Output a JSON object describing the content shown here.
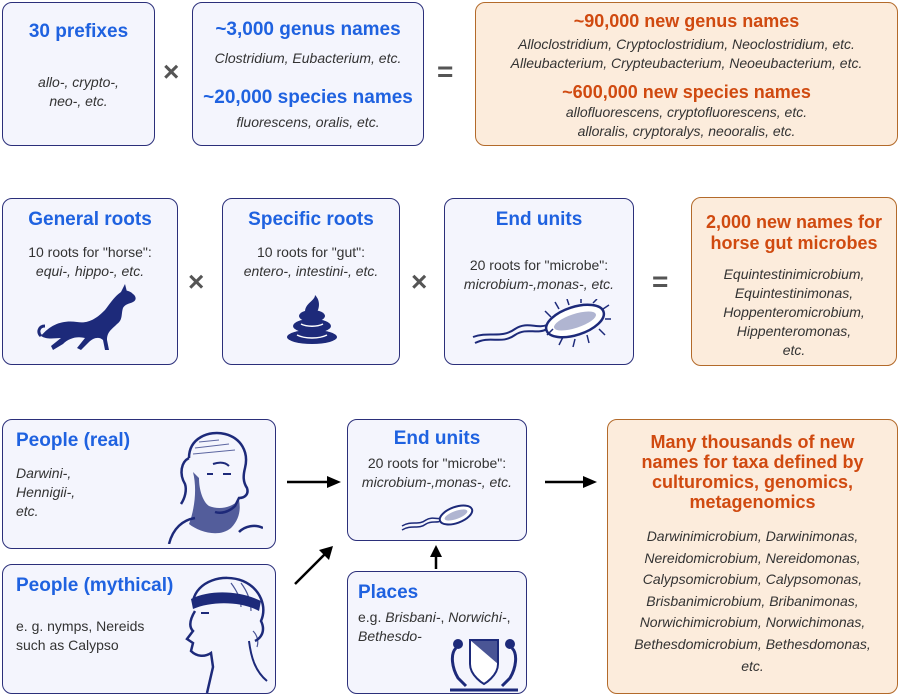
{
  "row1": {
    "prefixes": {
      "title": "30 prefixes",
      "l1": "allo-, crypto-,",
      "l2": "neo-, etc."
    },
    "genus": {
      "title": "~3,000 genus names",
      "examples": "Clostridium, Eubacterium, etc.",
      "species_title": "~20,000 species names",
      "species_examples": "fluorescens, oralis, etc."
    },
    "times": "×",
    "equals": "=",
    "result": {
      "title1": "~90,000 new genus names",
      "l1": "Alloclostridium, Cryptoclostridium, Neoclostridium, etc.",
      "l2": "Alleubacterium, Crypteubacterium, Neoeubacterium, etc.",
      "title2": "~600,000 new species names",
      "l3": "allofluorescens, cryptofluorescens, etc.",
      "l4": "alloralis, cryptoralys, neooralis, etc."
    }
  },
  "row2": {
    "general": {
      "title": "General roots",
      "desc": "10 roots for \"horse\":",
      "examples": "equi-, hippo-, etc."
    },
    "specific": {
      "title": "Specific roots",
      "desc": "10 roots for \"gut\":",
      "examples": "entero-, intestini-, etc."
    },
    "end": {
      "title": "End units",
      "desc": "20 roots for \"microbe\":",
      "examples": "microbium-,monas-, etc."
    },
    "times1": "×",
    "times2": "×",
    "equals": "=",
    "result": {
      "title1": "2,000 new names for",
      "title2": "horse gut microbes",
      "n1": "Equintestinimicrobium,",
      "n2": "Equintestinimonas,",
      "n3": "Hoppenteromicrobium,",
      "n4": "Hippenteromonas,",
      "n5": "etc."
    }
  },
  "row3": {
    "real": {
      "title": "People (real)",
      "l1": "Darwini-,",
      "l2": "Hennigii-,",
      "l3": "etc."
    },
    "myth": {
      "title": "People (mythical)",
      "l1": "e. g. nymps, Nereids",
      "l2": "such as Calypso"
    },
    "end": {
      "title": "End units",
      "desc": "20 roots for \"microbe\":",
      "examples": "microbium-,monas-, etc."
    },
    "places": {
      "title": "Places",
      "prefix": "e.g. ",
      "italic": "Brisbani-",
      "mid": ", ",
      "italic2": "Norwichi-",
      "tail": ",",
      "l2": "Bethesdo-"
    },
    "result": {
      "title1": "Many thousands of new",
      "title2": "names for taxa defined by",
      "title3": "culturomics, genomics,",
      "title4": "metagenomics",
      "names": [
        "Darwinimicrobium, Darwinimonas,",
        "Nereidomicrobium, Nereidomonas,",
        "Calypsomicrobium, Calypsomonas,",
        "Brisbanimicrobium, Bribanimonas,",
        "Norwichimicrobium, Norwichimonas,",
        "Bethesdomicrobium, Bethesdomonas,",
        "etc."
      ]
    }
  },
  "colors": {
    "blue_title": "#1f62e0",
    "orange_title": "#d04a10",
    "box_blue_bg": "#f4f5fd",
    "box_orange_bg": "#fcecdc",
    "illustration": "#1d2a7a"
  }
}
